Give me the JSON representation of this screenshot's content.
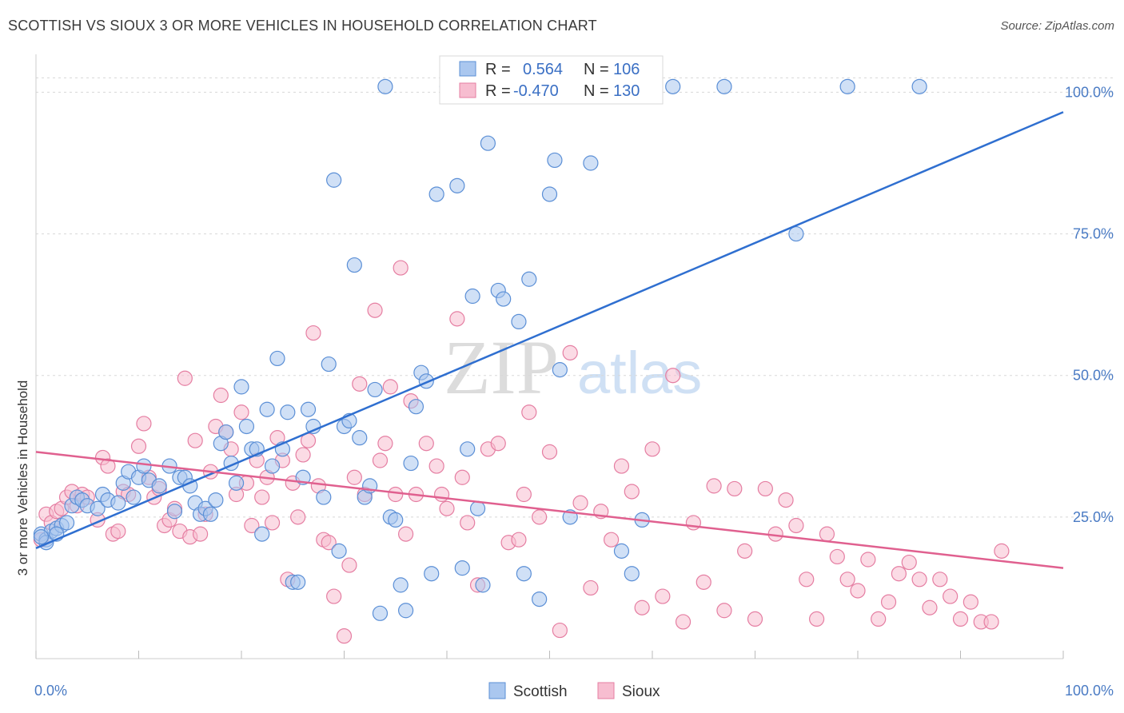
{
  "header": {
    "title": "SCOTTISH VS SIOUX 3 OR MORE VEHICLES IN HOUSEHOLD CORRELATION CHART",
    "source": "Source: ZipAtlas.com"
  },
  "watermark": {
    "zip": "ZIP",
    "atlas": "atlas"
  },
  "legend": {
    "rows": [
      {
        "r_label": "R =",
        "r_value": "0.564",
        "n_label": "N =",
        "n_value": "106"
      },
      {
        "r_label": "R =",
        "r_value": "-0.470",
        "n_label": "N =",
        "n_value": "130"
      }
    ]
  },
  "colors": {
    "scottish_fill": "#aac7ef",
    "scottish_stroke": "#5b8fd6",
    "scottish_line": "#2f6fd0",
    "sioux_fill": "#f7bdd0",
    "sioux_stroke": "#e57ea2",
    "sioux_line": "#e0608f",
    "grid": "#d8d8d8",
    "tick_text": "#4a7bc4"
  },
  "chart_data": {
    "type": "scatter",
    "ylabel": "3 or more Vehicles in Household",
    "xlim": [
      0,
      100
    ],
    "ylim": [
      0,
      105
    ],
    "x_tick_labels": [
      "0.0%",
      "100.0%"
    ],
    "y_ticks": [
      25,
      50,
      75,
      100
    ],
    "y_tick_labels": [
      "25.0%",
      "50.0%",
      "75.0%",
      "100.0%"
    ],
    "grid": true,
    "legend_position": "top-center",
    "series": [
      {
        "name": "Scottish",
        "r": 0.564,
        "n": 106,
        "trend": {
          "x0": 0,
          "y0": 19.5,
          "x1": 100,
          "y1": 96.5
        },
        "points": [
          [
            0.5,
            22
          ],
          [
            1,
            21
          ],
          [
            1.5,
            22.5
          ],
          [
            2,
            23
          ],
          [
            2.5,
            23.5
          ],
          [
            3,
            24
          ],
          [
            3.5,
            27
          ],
          [
            4,
            28.5
          ],
          [
            4.5,
            28
          ],
          [
            5,
            27
          ],
          [
            6,
            26.5
          ],
          [
            6.5,
            29
          ],
          [
            7,
            28
          ],
          [
            8,
            27.5
          ],
          [
            8.5,
            31
          ],
          [
            9,
            33
          ],
          [
            9.5,
            28.5
          ],
          [
            10,
            32
          ],
          [
            10.5,
            34
          ],
          [
            11,
            31.5
          ],
          [
            12,
            30.5
          ],
          [
            13,
            34
          ],
          [
            13.5,
            26
          ],
          [
            14,
            32
          ],
          [
            14.5,
            32
          ],
          [
            15,
            30.5
          ],
          [
            15.5,
            27.5
          ],
          [
            16,
            25.5
          ],
          [
            16.5,
            26.5
          ],
          [
            17,
            25.5
          ],
          [
            17.5,
            28
          ],
          [
            18,
            38
          ],
          [
            18.5,
            40
          ],
          [
            19,
            34.5
          ],
          [
            19.5,
            31
          ],
          [
            20,
            48
          ],
          [
            20.5,
            41
          ],
          [
            21,
            37
          ],
          [
            21.5,
            37
          ],
          [
            22,
            22
          ],
          [
            22.5,
            44
          ],
          [
            23,
            34
          ],
          [
            23.5,
            53
          ],
          [
            24,
            37
          ],
          [
            24.5,
            43.5
          ],
          [
            25,
            13.5
          ],
          [
            25.5,
            13.5
          ],
          [
            26,
            32
          ],
          [
            26.5,
            44
          ],
          [
            27,
            41
          ],
          [
            28,
            28.5
          ],
          [
            28.5,
            52
          ],
          [
            29,
            84.5
          ],
          [
            29.5,
            19
          ],
          [
            30,
            41
          ],
          [
            30.5,
            42
          ],
          [
            31,
            69.5
          ],
          [
            31.5,
            39
          ],
          [
            32,
            28.5
          ],
          [
            32.5,
            30.5
          ],
          [
            33,
            47.5
          ],
          [
            33.5,
            8
          ],
          [
            34,
            101
          ],
          [
            34.5,
            25
          ],
          [
            35,
            24.5
          ],
          [
            35.5,
            13
          ],
          [
            36,
            8.5
          ],
          [
            36.5,
            34.5
          ],
          [
            37,
            44.5
          ],
          [
            37.5,
            50.5
          ],
          [
            38,
            49
          ],
          [
            38.5,
            15
          ],
          [
            39,
            82
          ],
          [
            40,
            101
          ],
          [
            41,
            83.5
          ],
          [
            41.5,
            16
          ],
          [
            42,
            37
          ],
          [
            42.5,
            64
          ],
          [
            43,
            26.5
          ],
          [
            43.5,
            13
          ],
          [
            44,
            91
          ],
          [
            45,
            65
          ],
          [
            45.5,
            63.5
          ],
          [
            47,
            59.5
          ],
          [
            47.5,
            15
          ],
          [
            48,
            67
          ],
          [
            49,
            10.5
          ],
          [
            50,
            82
          ],
          [
            50.5,
            88
          ],
          [
            51,
            51
          ],
          [
            52,
            25
          ],
          [
            53,
            101
          ],
          [
            54,
            87.5
          ],
          [
            55,
            101
          ],
          [
            56,
            101
          ],
          [
            57,
            19
          ],
          [
            58,
            15
          ],
          [
            59,
            24.5
          ],
          [
            62,
            101
          ],
          [
            67,
            101
          ],
          [
            74,
            75
          ],
          [
            79,
            101
          ],
          [
            86,
            101
          ],
          [
            1,
            20.5
          ],
          [
            2,
            22
          ],
          [
            0.5,
            21.5
          ]
        ]
      },
      {
        "name": "Sioux",
        "r": -0.47,
        "n": 130,
        "trend": {
          "x0": 0,
          "y0": 36.5,
          "x1": 100,
          "y1": 16
        },
        "points": [
          [
            0.5,
            21
          ],
          [
            1,
            25.5
          ],
          [
            1.5,
            24
          ],
          [
            2,
            26
          ],
          [
            2.5,
            26.5
          ],
          [
            3,
            28.5
          ],
          [
            3.5,
            29.5
          ],
          [
            4,
            27
          ],
          [
            4.5,
            29
          ],
          [
            5,
            28.5
          ],
          [
            6,
            24.5
          ],
          [
            6.5,
            35.5
          ],
          [
            7,
            34
          ],
          [
            7.5,
            22
          ],
          [
            8,
            22.5
          ],
          [
            8.5,
            29.5
          ],
          [
            9,
            29
          ],
          [
            10,
            37.5
          ],
          [
            10.5,
            41.5
          ],
          [
            11,
            32
          ],
          [
            11.5,
            28.5
          ],
          [
            12,
            30
          ],
          [
            12.5,
            23.5
          ],
          [
            13,
            24.5
          ],
          [
            13.5,
            26.5
          ],
          [
            14,
            22.5
          ],
          [
            14.5,
            49.5
          ],
          [
            15,
            21.5
          ],
          [
            15.5,
            38.5
          ],
          [
            16,
            22
          ],
          [
            16.5,
            25.5
          ],
          [
            17,
            33
          ],
          [
            17.5,
            41
          ],
          [
            18,
            46.5
          ],
          [
            18.5,
            40
          ],
          [
            19,
            37
          ],
          [
            19.5,
            29
          ],
          [
            20,
            43.5
          ],
          [
            20.5,
            31
          ],
          [
            21,
            23.5
          ],
          [
            21.5,
            35
          ],
          [
            22,
            28.5
          ],
          [
            22.5,
            32
          ],
          [
            23,
            24
          ],
          [
            23.5,
            39
          ],
          [
            24,
            35
          ],
          [
            24.5,
            14
          ],
          [
            25,
            31
          ],
          [
            25.5,
            25
          ],
          [
            26,
            36
          ],
          [
            26.5,
            38.5
          ],
          [
            27,
            57.5
          ],
          [
            27.5,
            30.5
          ],
          [
            28,
            21
          ],
          [
            28.5,
            20.5
          ],
          [
            29,
            11
          ],
          [
            30,
            4
          ],
          [
            30.5,
            16.5
          ],
          [
            31,
            32
          ],
          [
            31.5,
            48.5
          ],
          [
            32,
            29
          ],
          [
            33,
            61.5
          ],
          [
            33.5,
            35
          ],
          [
            34,
            38
          ],
          [
            34.5,
            48
          ],
          [
            35,
            29
          ],
          [
            35.5,
            69
          ],
          [
            36,
            22
          ],
          [
            36.5,
            45.5
          ],
          [
            37,
            29
          ],
          [
            38,
            38
          ],
          [
            39,
            34
          ],
          [
            39.5,
            29
          ],
          [
            40,
            26.5
          ],
          [
            41,
            60
          ],
          [
            41.5,
            32
          ],
          [
            42,
            24
          ],
          [
            43,
            13
          ],
          [
            44,
            37
          ],
          [
            45,
            38
          ],
          [
            46,
            20.5
          ],
          [
            47,
            21
          ],
          [
            47.5,
            29
          ],
          [
            48,
            43.5
          ],
          [
            49,
            25
          ],
          [
            50,
            36.5
          ],
          [
            51,
            5
          ],
          [
            52,
            54
          ],
          [
            53,
            27.5
          ],
          [
            54,
            12.5
          ],
          [
            55,
            26
          ],
          [
            56,
            21
          ],
          [
            57,
            34
          ],
          [
            58,
            29.5
          ],
          [
            59,
            9
          ],
          [
            60,
            37
          ],
          [
            61,
            11
          ],
          [
            62,
            50
          ],
          [
            63,
            6.5
          ],
          [
            64,
            24
          ],
          [
            65,
            13.5
          ],
          [
            66,
            30.5
          ],
          [
            67,
            8.5
          ],
          [
            68,
            30
          ],
          [
            69,
            19
          ],
          [
            70,
            7
          ],
          [
            71,
            30
          ],
          [
            72,
            22
          ],
          [
            73,
            28
          ],
          [
            74,
            23.5
          ],
          [
            75,
            14
          ],
          [
            76,
            7
          ],
          [
            77,
            22
          ],
          [
            78,
            18
          ],
          [
            79,
            14
          ],
          [
            80,
            12
          ],
          [
            81,
            17.5
          ],
          [
            82,
            7
          ],
          [
            83,
            10
          ],
          [
            84,
            15
          ],
          [
            85,
            17
          ],
          [
            86,
            14
          ],
          [
            87,
            9
          ],
          [
            88,
            14
          ],
          [
            89,
            11
          ],
          [
            90,
            7
          ],
          [
            91,
            10
          ],
          [
            92,
            6.5
          ],
          [
            93,
            6.5
          ],
          [
            94,
            19
          ]
        ]
      }
    ]
  }
}
